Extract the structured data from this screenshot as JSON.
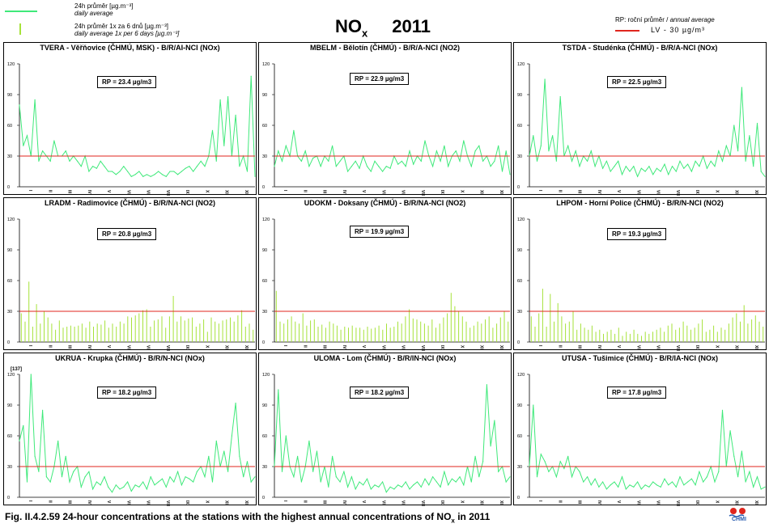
{
  "legend": {
    "line_label_cz": "24h průměr [µg.m⁻³]",
    "line_label_en": "daily average",
    "bar_label_cz": "24h průměr 1x za 6 dnů [µg.m⁻³]",
    "bar_label_en": "daily average 1x per 6 days [µg.m⁻³]",
    "rp_label_cz": "RP: roční průměr /",
    "rp_label_en": "annual average",
    "lv_label": "LV - 30 µg/m³"
  },
  "title": {
    "pollutant": "NO",
    "subscript": "x",
    "year": "2011"
  },
  "caption": {
    "prefix": "Fig. II.4.2.59  24-hour concentrations at the stations with the highest annual concentrations of NO",
    "subscript": "x",
    "suffix": " in 2011"
  },
  "logo_text": "CHMI",
  "colors": {
    "daily_line": "#3fe97a",
    "six_day_bar": "#a6e23a",
    "limit_line": "#e0261e"
  },
  "chart_data": [
    {
      "type": "line",
      "title": "TVERA -  Věřňovice (ČHMÚ, MSK) - B/R/AI-NCI (NOx)",
      "rp_text": "RP = 23.4 µg/m3",
      "ylim": [
        0,
        120
      ],
      "yticks": [
        0,
        30,
        60,
        90,
        120
      ],
      "x_month_labels": [
        "I",
        "II",
        "III",
        "IV",
        "V",
        "VI",
        "VII",
        "VIII",
        "IX",
        "X",
        "XI",
        "XII"
      ],
      "limit_value": 30,
      "series": [
        {
          "values": [
            80,
            40,
            50,
            30,
            85,
            25,
            35,
            30,
            25,
            45,
            30,
            30,
            35,
            25,
            30,
            25,
            20,
            30,
            15,
            20,
            18,
            25,
            20,
            15,
            15,
            12,
            15,
            20,
            15,
            10,
            12,
            15,
            10,
            12,
            10,
            12,
            15,
            12,
            10,
            15,
            15,
            12,
            15,
            18,
            20,
            15,
            20,
            25,
            20,
            30,
            55,
            25,
            85,
            40,
            88,
            30,
            70,
            20,
            30,
            15,
            108,
            10
          ]
        }
      ]
    },
    {
      "type": "line",
      "title": "MBELM - Bělotín (ČHMÚ) - B/R/A-NCI (NO2)",
      "rp_text": "RP = 22.9 µg/m3",
      "ylim": [
        0,
        120
      ],
      "yticks": [
        0,
        30,
        60,
        90,
        120
      ],
      "x_month_labels": [
        "I",
        "II",
        "III",
        "IV",
        "V",
        "VI",
        "VII",
        "VIII",
        "IX",
        "X",
        "XI",
        "XII"
      ],
      "limit_value": 30,
      "series": [
        {
          "values": [
            20,
            35,
            25,
            40,
            30,
            55,
            30,
            25,
            35,
            20,
            28,
            30,
            20,
            30,
            25,
            40,
            20,
            25,
            30,
            15,
            20,
            25,
            18,
            30,
            20,
            15,
            25,
            20,
            15,
            20,
            18,
            30,
            22,
            25,
            20,
            35,
            22,
            30,
            25,
            45,
            30,
            20,
            35,
            25,
            40,
            20,
            30,
            35,
            25,
            45,
            30,
            20,
            35,
            40,
            25,
            30,
            20,
            25,
            40,
            15,
            35,
            12
          ]
        }
      ]
    },
    {
      "type": "line",
      "title": "TSTDA - Studénka (ČHMÚ) - B/R/A-NCI (NOx)",
      "rp_text": "RP = 22.5 µg/m3",
      "ylim": [
        0,
        120
      ],
      "yticks": [
        0,
        30,
        60,
        90,
        120
      ],
      "x_month_labels": [
        "I",
        "II",
        "III",
        "IV",
        "V",
        "VI",
        "VII",
        "VIII",
        "IX",
        "X",
        "XI",
        "XII"
      ],
      "limit_value": 30,
      "series": [
        {
          "values": [
            30,
            50,
            25,
            40,
            105,
            35,
            50,
            25,
            88,
            30,
            40,
            25,
            35,
            20,
            30,
            25,
            35,
            20,
            30,
            18,
            25,
            15,
            20,
            25,
            12,
            20,
            15,
            20,
            10,
            18,
            15,
            20,
            12,
            18,
            15,
            22,
            12,
            20,
            15,
            25,
            18,
            22,
            15,
            25,
            20,
            30,
            18,
            25,
            20,
            35,
            25,
            40,
            30,
            60,
            35,
            97,
            25,
            50,
            20,
            62,
            15,
            10
          ]
        }
      ]
    },
    {
      "type": "bar",
      "title": "LRADM - Radimovice (ČHMÚ) - B/R/NA-NCI (NO2)",
      "rp_text": "RP = 20.8 µg/m3",
      "ylim": [
        0,
        120
      ],
      "yticks": [
        0,
        30,
        60,
        90,
        120
      ],
      "x_month_labels": [
        "I",
        "II",
        "III",
        "IV",
        "V",
        "VI",
        "VII",
        "VIII",
        "IX",
        "X",
        "XI",
        "XII"
      ],
      "limit_value": 30,
      "series": [
        {
          "values": [
            28,
            20,
            59,
            15,
            37,
            18,
            30,
            24,
            18,
            12,
            21,
            14,
            15,
            16,
            15,
            16,
            18,
            14,
            20,
            15,
            18,
            17,
            21,
            14,
            18,
            15,
            20,
            18,
            25,
            24,
            26,
            28,
            31,
            32,
            15,
            21,
            22,
            25,
            14,
            25,
            45,
            20,
            25,
            21,
            23,
            24,
            15,
            18,
            22,
            10,
            24,
            20,
            18,
            21,
            22,
            24,
            20,
            26,
            31,
            15,
            18,
            12
          ]
        }
      ]
    },
    {
      "type": "bar",
      "title": "UDOKM - Doksany (ČHMÚ) - B/R/NA-NCI (NO2)",
      "rp_text": "RP = 19.9 µg/m3",
      "ylim": [
        0,
        120
      ],
      "yticks": [
        0,
        30,
        60,
        90,
        120
      ],
      "x_month_labels": [
        "I",
        "II",
        "III",
        "IV",
        "V",
        "VI",
        "VII",
        "VIII",
        "IX",
        "X",
        "XI",
        "XII"
      ],
      "limit_value": 30,
      "series": [
        {
          "values": [
            50,
            20,
            18,
            22,
            25,
            20,
            18,
            28,
            16,
            21,
            22,
            15,
            17,
            14,
            20,
            18,
            16,
            12,
            15,
            14,
            16,
            14,
            14,
            12,
            15,
            13,
            14,
            16,
            12,
            18,
            14,
            15,
            20,
            18,
            25,
            32,
            23,
            22,
            20,
            18,
            16,
            22,
            14,
            18,
            24,
            28,
            48,
            35,
            30,
            25,
            20,
            14,
            16,
            20,
            18,
            22,
            25,
            14,
            18,
            24,
            30,
            20
          ]
        }
      ]
    },
    {
      "type": "bar",
      "title": "LHPOM - Horní Police (ČHMÚ) - B/R/N-NCI (NO2)",
      "rp_text": "RP = 19.3 µg/m3",
      "ylim": [
        0,
        120
      ],
      "yticks": [
        0,
        30,
        60,
        90,
        120
      ],
      "x_month_labels": [
        "I",
        "II",
        "III",
        "IV",
        "V",
        "VI",
        "VII",
        "VIII",
        "IX",
        "X",
        "XI",
        "XII"
      ],
      "limit_value": 30,
      "series": [
        {
          "values": [
            25,
            15,
            28,
            52,
            15,
            47,
            20,
            38,
            25,
            18,
            20,
            30,
            12,
            18,
            14,
            12,
            16,
            10,
            12,
            8,
            10,
            12,
            8,
            14,
            6,
            10,
            8,
            12,
            8,
            6,
            10,
            8,
            10,
            12,
            14,
            10,
            16,
            18,
            12,
            14,
            20,
            16,
            12,
            14,
            18,
            22,
            10,
            12,
            16,
            10,
            14,
            12,
            18,
            24,
            28,
            20,
            36,
            18,
            22,
            26,
            20,
            15
          ]
        }
      ]
    },
    {
      "type": "line",
      "title": "UKRUA - Krupka (ČHMÚ) - B/R/N-NCI (NOx)",
      "rp_text": "RP = 18.2 µg/m3",
      "ylim": [
        0,
        120
      ],
      "yticks": [
        0,
        30,
        60,
        90,
        120
      ],
      "x_month_labels": [
        "I",
        "II",
        "III",
        "IV",
        "V",
        "VI",
        "VII",
        "VIII",
        "IX",
        "X",
        "XI",
        "XII"
      ],
      "limit_value": 30,
      "annotation": "[137]",
      "series": [
        {
          "values": [
            55,
            70,
            15,
            120,
            40,
            25,
            85,
            20,
            15,
            30,
            55,
            20,
            40,
            15,
            25,
            30,
            10,
            20,
            25,
            8,
            15,
            12,
            20,
            10,
            5,
            12,
            8,
            10,
            15,
            6,
            12,
            10,
            15,
            8,
            20,
            12,
            15,
            18,
            10,
            20,
            15,
            25,
            12,
            20,
            18,
            15,
            25,
            30,
            20,
            40,
            15,
            55,
            30,
            45,
            25,
            60,
            92,
            40,
            20,
            35,
            15,
            20
          ]
        }
      ]
    },
    {
      "type": "line",
      "title": "ULOMA - Lom (ČHMÚ) - B/R/IN-NCI (NOx)",
      "rp_text": "RP = 18.2 µg/m3",
      "ylim": [
        0,
        120
      ],
      "yticks": [
        0,
        30,
        60,
        90,
        120
      ],
      "x_month_labels": [
        "I",
        "II",
        "III",
        "IV",
        "V",
        "VI",
        "VII",
        "VIII",
        "IX",
        "X",
        "XI",
        "XII"
      ],
      "limit_value": 30,
      "series": [
        {
          "values": [
            30,
            105,
            25,
            60,
            30,
            20,
            40,
            15,
            30,
            55,
            25,
            45,
            15,
            30,
            10,
            40,
            20,
            15,
            25,
            10,
            20,
            8,
            15,
            12,
            18,
            8,
            12,
            10,
            15,
            5,
            10,
            8,
            12,
            10,
            15,
            8,
            12,
            15,
            10,
            18,
            12,
            20,
            15,
            10,
            25,
            12,
            18,
            15,
            20,
            12,
            30,
            15,
            40,
            20,
            35,
            110,
            50,
            75,
            25,
            30,
            15,
            20
          ]
        }
      ]
    },
    {
      "type": "line",
      "title": "UTUSA - Tušimice (ČHMÚ) - B/R/IA-NCI (NOx)",
      "rp_text": "RP = 17.8 µg/m3",
      "ylim": [
        0,
        120
      ],
      "yticks": [
        0,
        30,
        60,
        90,
        120
      ],
      "x_month_labels": [
        "I",
        "II",
        "III",
        "IV",
        "V",
        "VI",
        "VII",
        "VIII",
        "IX",
        "X",
        "XI",
        "XII"
      ],
      "limit_value": 30,
      "series": [
        {
          "values": [
            30,
            90,
            20,
            42,
            35,
            25,
            30,
            20,
            35,
            28,
            40,
            20,
            30,
            25,
            15,
            20,
            12,
            18,
            10,
            15,
            8,
            12,
            15,
            10,
            20,
            8,
            12,
            10,
            15,
            8,
            12,
            10,
            15,
            12,
            10,
            18,
            12,
            15,
            10,
            20,
            12,
            15,
            18,
            12,
            25,
            15,
            20,
            30,
            15,
            25,
            85,
            30,
            65,
            40,
            20,
            45,
            15,
            25,
            10,
            20,
            8,
            10
          ]
        }
      ]
    }
  ]
}
